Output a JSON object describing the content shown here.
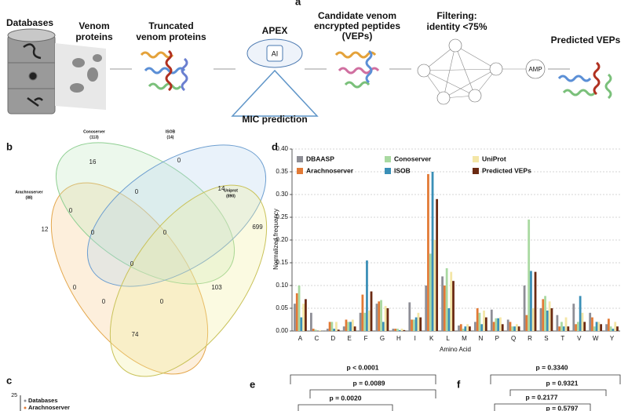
{
  "panel_a": {
    "label": "a",
    "databases": "Databases",
    "venom_proteins": [
      "Venom",
      "proteins"
    ],
    "truncated": [
      "Truncated",
      "venom proteins"
    ],
    "apex": "APEX",
    "ai": "AI",
    "mic": "MIC prediction",
    "candidate": [
      "Candidate venom",
      "encrypted peptides",
      "(VEPs)"
    ],
    "filtering": [
      "Filtering:",
      "identity <75%"
    ],
    "amp": "AMP",
    "predicted": "Predicted VEPs"
  },
  "panel_b": {
    "label": "b",
    "sets": [
      {
        "name": "Conoserver",
        "count": "(113)"
      },
      {
        "name": "ISOB",
        "count": "(14)"
      },
      {
        "name": "Arachnoserver",
        "count": "(88)"
      },
      {
        "name": "Uniprot",
        "count": "(890)"
      }
    ],
    "regions": [
      16,
      0,
      0,
      14,
      12,
      0,
      0,
      0,
      699,
      0,
      0,
      103,
      0,
      0,
      74
    ]
  },
  "chart_data": {
    "type": "bar",
    "label": "d",
    "ylabel": "Normalized frequency",
    "xlabel": "Amino Acid",
    "categories": [
      "A",
      "C",
      "D",
      "E",
      "F",
      "G",
      "H",
      "I",
      "K",
      "L",
      "M",
      "N",
      "P",
      "Q",
      "R",
      "S",
      "T",
      "V",
      "W",
      "Y"
    ],
    "series": [
      {
        "name": "DBAASP",
        "color": "#8e8e96",
        "values": [
          0.06,
          0.04,
          0.005,
          0.01,
          0.04,
          0.06,
          0.005,
          0.063,
          0.1,
          0.12,
          0.012,
          0.02,
          0.047,
          0.025,
          0.1,
          0.05,
          0.035,
          0.06,
          0.04,
          0.015
        ]
      },
      {
        "name": "Arachnoserver",
        "color": "#e27a36",
        "values": [
          0.083,
          0.005,
          0.02,
          0.025,
          0.08,
          0.065,
          0.005,
          0.025,
          0.345,
          0.1,
          0.015,
          0.05,
          0.02,
          0.02,
          0.035,
          0.07,
          0.01,
          0.015,
          0.03,
          0.027
        ]
      },
      {
        "name": "Conoserver",
        "color": "#a9d9a1",
        "values": [
          0.1,
          0.003,
          0.02,
          0.02,
          0.04,
          0.068,
          0.005,
          0.025,
          0.17,
          0.138,
          0.005,
          0.04,
          0.028,
          0.01,
          0.245,
          0.077,
          0.02,
          0.02,
          0.01,
          0.01
        ]
      },
      {
        "name": "ISOB",
        "color": "#3a8fb7",
        "values": [
          0.03,
          0,
          0.005,
          0.02,
          0.155,
          0.02,
          0.002,
          0.03,
          0.35,
          0.05,
          0.01,
          0.015,
          0.028,
          0.01,
          0.132,
          0.045,
          0.01,
          0.077,
          0.02,
          0.005
        ]
      },
      {
        "name": "UniProt",
        "color": "#f4e6a6",
        "values": [
          0.06,
          0.002,
          0.02,
          0.025,
          0.045,
          0.055,
          0.005,
          0.04,
          0.2,
          0.13,
          0.015,
          0.045,
          0.03,
          0.015,
          0.05,
          0.065,
          0.03,
          0.04,
          0.02,
          0.02
        ]
      },
      {
        "name": "Predicted VEPs",
        "color": "#6b2a12",
        "values": [
          0.07,
          0,
          0.003,
          0.01,
          0.087,
          0.05,
          0.002,
          0.03,
          0.29,
          0.11,
          0.01,
          0.03,
          0.015,
          0.01,
          0.13,
          0.05,
          0.01,
          0.02,
          0.015,
          0.01
        ]
      }
    ],
    "ylim": [
      0,
      0.4
    ],
    "yticks": [
      {
        "value": 0,
        "label": "0.00"
      },
      {
        "value": 0.05,
        "label": "0.05"
      },
      {
        "value": 0.1,
        "label": "0.10"
      },
      {
        "value": 0.15,
        "label": "0.15"
      },
      {
        "value": 0.2,
        "label": "0.20"
      },
      {
        "value": 0.25,
        "label": "0.25"
      },
      {
        "value": 0.3,
        "label": "0.30"
      },
      {
        "value": 0.35,
        "label": "0.35"
      },
      {
        "value": 0.4,
        "label": "0.40"
      }
    ],
    "grid": true
  },
  "panel_c": {
    "label": "c",
    "tick": "25",
    "legend": [
      "Databases",
      "Arachnoserver"
    ]
  },
  "panel_e": {
    "label": "e",
    "pvalues": [
      "p < 0.0001",
      "p = 0.0089",
      "p = 0.0020"
    ]
  },
  "panel_f": {
    "label": "f",
    "pvalues": [
      "p = 0.3340",
      "p = 0.9321",
      "p = 0.2177",
      "p = 0.5797"
    ]
  }
}
